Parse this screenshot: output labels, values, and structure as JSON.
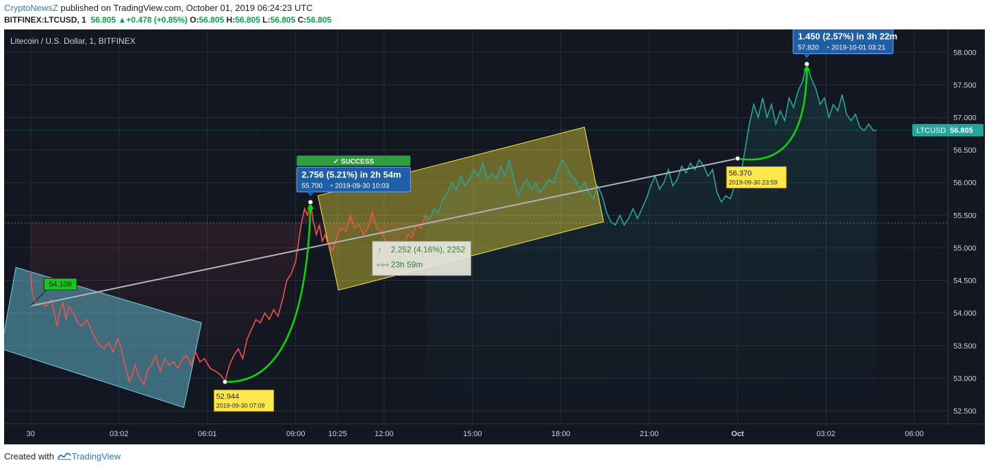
{
  "header": {
    "author": "CryptoNewsZ",
    "published_text": " published on TradingView.com, October 01, 2019 06:24:23 UTC",
    "symbol": "BITFINEX:LTCUSD, 1",
    "last": "56.805",
    "change": "+0.478 (+0.85%)",
    "o_label": "O:",
    "o": "56.805",
    "h_label": "H:",
    "h": "56.805",
    "l_label": "L:",
    "l": "56.805",
    "c_label": "C:",
    "c": "56.805"
  },
  "chart_title": "Litecoin / U.S. Dollar, 1, BITFINEX",
  "footer": {
    "created_with": "Created with",
    "brand": "TradingView"
  },
  "colors": {
    "background": "#131722",
    "grid": "#2a2e39",
    "axis_text": "#d1d4dc",
    "down": "#ef5350",
    "up": "#26a69a",
    "arc": "#00e000",
    "trend": "#b2b5be",
    "blue_box": "#6fd3e8",
    "yellow_box": "#ffeb3b",
    "label_yellow": "#ffe94a",
    "label_blue": "#1e5fa8",
    "success": "#2e9e3e",
    "price_tag": "#26a69a"
  },
  "chart_data": {
    "type": "line",
    "title": "Litecoin / U.S. Dollar, 1, BITFINEX",
    "series": [
      {
        "name": "LTCUSD",
        "points": [
          [
            0,
            54.6
          ],
          [
            0.06,
            54.3
          ],
          [
            0.12,
            54.2
          ],
          [
            0.2,
            54.15
          ],
          [
            0.3,
            54.12
          ],
          [
            0.4,
            54.15
          ],
          [
            0.5,
            54.1
          ],
          [
            0.58,
            54.12
          ],
          [
            0.7,
            54.2
          ],
          [
            0.8,
            54.0
          ],
          [
            0.9,
            53.8
          ],
          [
            1.0,
            54.05
          ],
          [
            1.1,
            54.15
          ],
          [
            1.2,
            53.9
          ],
          [
            1.3,
            54.1
          ],
          [
            1.45,
            54.0
          ],
          [
            1.6,
            53.85
          ],
          [
            1.75,
            53.8
          ],
          [
            1.9,
            53.9
          ],
          [
            2.05,
            53.75
          ],
          [
            2.2,
            53.6
          ],
          [
            2.35,
            53.5
          ],
          [
            2.5,
            53.45
          ],
          [
            2.65,
            53.55
          ],
          [
            2.8,
            53.4
          ],
          [
            2.95,
            53.6
          ],
          [
            3.05,
            53.5
          ],
          [
            3.2,
            53.2
          ],
          [
            3.35,
            52.95
          ],
          [
            3.45,
            53.05
          ],
          [
            3.55,
            53.2
          ],
          [
            3.7,
            53.0
          ],
          [
            3.85,
            52.9
          ],
          [
            3.95,
            53.1
          ],
          [
            4.1,
            53.2
          ],
          [
            4.25,
            53.35
          ],
          [
            4.4,
            53.1
          ],
          [
            4.55,
            53.3
          ],
          [
            4.7,
            53.2
          ],
          [
            4.85,
            53.25
          ],
          [
            5.0,
            53.15
          ],
          [
            5.15,
            53.3
          ],
          [
            5.3,
            53.35
          ],
          [
            5.45,
            53.2
          ],
          [
            5.6,
            53.4
          ],
          [
            5.75,
            53.25
          ],
          [
            5.9,
            53.3
          ],
          [
            6.1,
            53.15
          ],
          [
            6.3,
            53.1
          ],
          [
            6.45,
            53.05
          ],
          [
            6.6,
            52.95
          ],
          [
            6.75,
            53.2
          ],
          [
            6.9,
            53.35
          ],
          [
            7.05,
            53.45
          ],
          [
            7.2,
            53.3
          ],
          [
            7.35,
            53.6
          ],
          [
            7.5,
            53.75
          ],
          [
            7.65,
            53.9
          ],
          [
            7.8,
            53.85
          ],
          [
            7.95,
            54.0
          ],
          [
            8.1,
            53.9
          ],
          [
            8.25,
            54.05
          ],
          [
            8.4,
            53.95
          ],
          [
            8.55,
            54.2
          ],
          [
            8.7,
            54.5
          ],
          [
            8.85,
            54.6
          ],
          [
            9.0,
            54.8
          ],
          [
            9.1,
            55.1
          ],
          [
            9.2,
            55.4
          ],
          [
            9.3,
            55.6
          ],
          [
            9.4,
            55.5
          ],
          [
            9.5,
            55.7
          ],
          [
            9.6,
            55.4
          ],
          [
            9.7,
            55.2
          ],
          [
            9.8,
            55.35
          ],
          [
            9.9,
            55.1
          ],
          [
            10.0,
            55.2
          ],
          [
            10.1,
            55.05
          ],
          [
            10.25,
            54.95
          ],
          [
            10.42,
            55.2
          ],
          [
            10.55,
            55.3
          ],
          [
            10.7,
            55.25
          ],
          [
            10.85,
            55.5
          ],
          [
            11.0,
            55.3
          ],
          [
            11.15,
            55.35
          ],
          [
            11.3,
            55.2
          ],
          [
            11.45,
            55.3
          ],
          [
            11.6,
            55.55
          ],
          [
            11.75,
            55.3
          ],
          [
            11.9,
            55.25
          ],
          [
            12.05,
            55.1
          ],
          [
            12.2,
            54.95
          ],
          [
            12.35,
            55.0
          ],
          [
            12.5,
            54.9
          ],
          [
            12.65,
            54.95
          ],
          [
            12.8,
            55.2
          ],
          [
            12.95,
            55.15
          ],
          [
            13.1,
            55.35
          ],
          [
            13.25,
            55.3
          ],
          [
            13.4,
            55.5
          ],
          [
            13.55,
            55.45
          ],
          [
            13.7,
            55.6
          ],
          [
            13.85,
            55.55
          ],
          [
            14.0,
            55.75
          ],
          [
            14.15,
            55.85
          ],
          [
            14.3,
            56.0
          ],
          [
            14.45,
            55.9
          ],
          [
            14.6,
            56.1
          ],
          [
            14.75,
            55.95
          ],
          [
            14.9,
            56.05
          ],
          [
            15.05,
            56.2
          ],
          [
            15.2,
            56.1
          ],
          [
            15.35,
            56.3
          ],
          [
            15.5,
            56.05
          ],
          [
            15.65,
            56.15
          ],
          [
            15.8,
            56.05
          ],
          [
            15.95,
            56.25
          ],
          [
            16.1,
            56.1
          ],
          [
            16.25,
            56.35
          ],
          [
            16.4,
            56.05
          ],
          [
            16.55,
            55.8
          ],
          [
            16.7,
            55.95
          ],
          [
            16.85,
            56.05
          ],
          [
            17.0,
            55.9
          ],
          [
            17.15,
            56.0
          ],
          [
            17.3,
            55.85
          ],
          [
            17.45,
            55.95
          ],
          [
            17.6,
            56.05
          ],
          [
            17.75,
            56.0
          ],
          [
            17.9,
            56.2
          ],
          [
            18.05,
            56.35
          ],
          [
            18.2,
            56.25
          ],
          [
            18.35,
            56.1
          ],
          [
            18.5,
            56.05
          ],
          [
            18.65,
            55.9
          ],
          [
            18.8,
            56.0
          ],
          [
            18.95,
            55.85
          ],
          [
            19.1,
            55.75
          ],
          [
            19.25,
            55.95
          ],
          [
            19.4,
            55.8
          ],
          [
            19.55,
            55.55
          ],
          [
            19.7,
            55.4
          ],
          [
            19.85,
            55.35
          ],
          [
            20.0,
            55.5
          ],
          [
            20.15,
            55.35
          ],
          [
            20.3,
            55.45
          ],
          [
            20.45,
            55.6
          ],
          [
            20.6,
            55.45
          ],
          [
            20.75,
            55.6
          ],
          [
            20.9,
            55.75
          ],
          [
            21.05,
            55.95
          ],
          [
            21.2,
            56.1
          ],
          [
            21.35,
            55.9
          ],
          [
            21.5,
            56.0
          ],
          [
            21.65,
            56.2
          ],
          [
            21.8,
            55.95
          ],
          [
            21.95,
            56.05
          ],
          [
            22.1,
            56.25
          ],
          [
            22.25,
            56.15
          ],
          [
            22.4,
            56.3
          ],
          [
            22.55,
            56.2
          ],
          [
            22.7,
            56.35
          ],
          [
            22.85,
            56.25
          ],
          [
            23.0,
            56.1
          ],
          [
            23.15,
            56.2
          ],
          [
            23.3,
            55.85
          ],
          [
            23.45,
            55.7
          ],
          [
            23.6,
            55.8
          ],
          [
            23.75,
            55.75
          ],
          [
            23.9,
            55.95
          ],
          [
            24.0,
            56.2
          ],
          [
            24.1,
            56.1
          ],
          [
            24.25,
            56.5
          ],
          [
            24.4,
            56.9
          ],
          [
            24.55,
            57.2
          ],
          [
            24.7,
            57.0
          ],
          [
            24.85,
            57.3
          ],
          [
            25.0,
            57.0
          ],
          [
            25.15,
            57.2
          ],
          [
            25.3,
            56.9
          ],
          [
            25.45,
            57.1
          ],
          [
            25.6,
            56.95
          ],
          [
            25.75,
            57.3
          ],
          [
            25.9,
            57.15
          ],
          [
            26.05,
            57.4
          ],
          [
            26.2,
            57.55
          ],
          [
            26.35,
            57.82
          ],
          [
            26.5,
            57.6
          ],
          [
            26.65,
            57.45
          ],
          [
            26.8,
            57.2
          ],
          [
            26.95,
            57.3
          ],
          [
            27.1,
            57.0
          ],
          [
            27.25,
            57.2
          ],
          [
            27.4,
            57.1
          ],
          [
            27.55,
            57.35
          ],
          [
            27.7,
            57.05
          ],
          [
            27.85,
            56.95
          ],
          [
            28.0,
            57.05
          ],
          [
            28.15,
            56.85
          ],
          [
            28.3,
            56.8
          ],
          [
            28.45,
            56.9
          ],
          [
            28.6,
            56.8
          ],
          [
            28.72,
            56.805
          ]
        ]
      }
    ],
    "x_ticks": [
      {
        "x": 0.0,
        "label": "30"
      },
      {
        "x": 3.0,
        "label": "03:02"
      },
      {
        "x": 6.0,
        "label": "06:01"
      },
      {
        "x": 9.0,
        "label": "09:00"
      },
      {
        "x": 10.42,
        "label": "10:25"
      },
      {
        "x": 12.0,
        "label": "12:00"
      },
      {
        "x": 15.0,
        "label": "15:00"
      },
      {
        "x": 18.0,
        "label": "18:00"
      },
      {
        "x": 21.0,
        "label": "21:00"
      },
      {
        "x": 24.0,
        "label": "Oct"
      },
      {
        "x": 27.0,
        "label": "03:02"
      },
      {
        "x": 30.0,
        "label": "06:00"
      }
    ],
    "y_ticks": [
      52.5,
      53.0,
      53.5,
      54.0,
      54.5,
      55.0,
      55.5,
      56.0,
      56.5,
      57.0,
      57.5,
      58.0
    ],
    "ylim": [
      52.3,
      58.35
    ],
    "xlim": [
      -0.9,
      31.0
    ],
    "last_price": {
      "label": "LTCUSD",
      "value": 56.805
    },
    "dashed_level": 55.38,
    "annotations": {
      "low_point": {
        "price": "52.944",
        "time": "2019-09-30 07:09"
      },
      "mid_point": {
        "price": "56.370",
        "time": "2019-09-30 23:59"
      },
      "start_label": "54.108",
      "success_1": {
        "badge": "SUCCESS",
        "change": "2.756 (5.21%) in 2h 54m",
        "price": "55.700",
        "time": "2019-09-30  10:03"
      },
      "success_2": {
        "badge": "SUCCESS",
        "change": "1.450 (2.57%) in 3h 22m",
        "price": "57.820",
        "time": "2019-10-01  03:21"
      },
      "measure": {
        "change": "2.252 (4.16%), 2252",
        "duration": "23h 59m"
      }
    }
  }
}
